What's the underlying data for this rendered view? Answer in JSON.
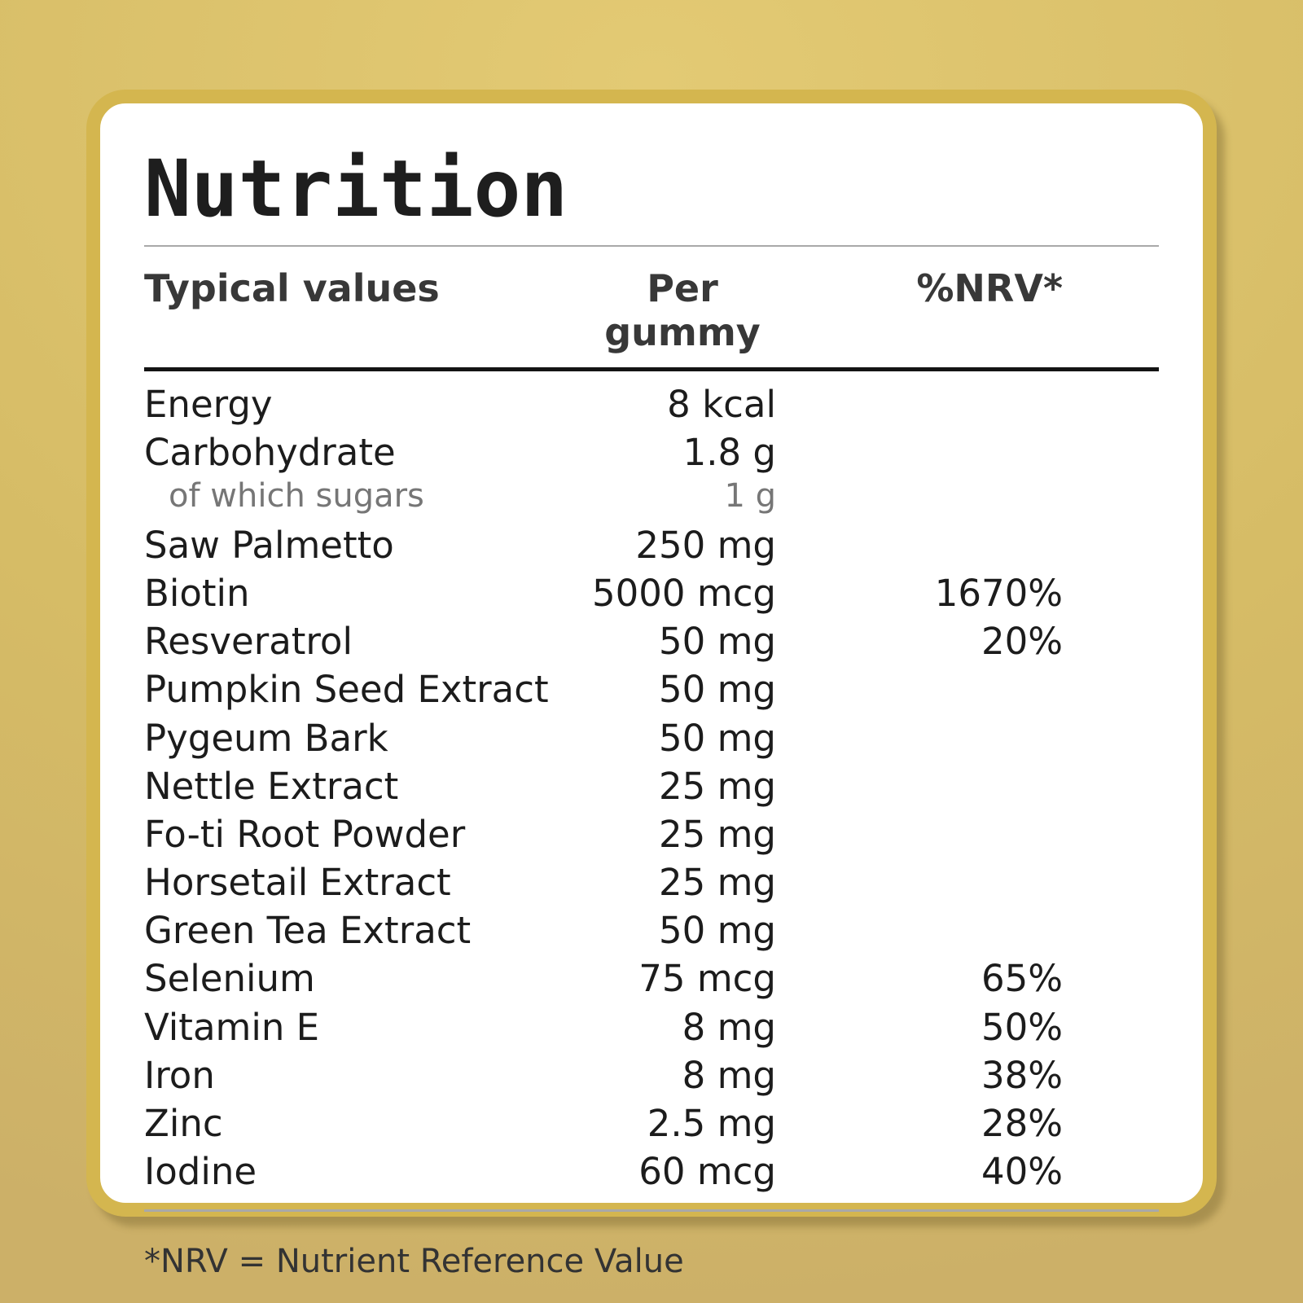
{
  "label": {
    "title": "Nutrition",
    "footnote": "*NRV = Nutrient Reference Value"
  },
  "colors": {
    "background_gold": "#d6bc66",
    "card_border_gold": "#d4b64f",
    "card_background": "#ffffff",
    "title_text": "#1e1e1e",
    "body_text": "#1c1c1c",
    "sub_row_text": "#767676",
    "header_rule": "#141414",
    "divider_gray": "#a9a9a9"
  },
  "table": {
    "headers": [
      "Typical values",
      "Per gummy",
      "%NRV*"
    ],
    "rows": [
      {
        "name": "Energy",
        "amount": "8 kcal",
        "nrv": "",
        "sub": false
      },
      {
        "name": "Carbohydrate",
        "amount": "1.8 g",
        "nrv": "",
        "sub": false
      },
      {
        "name": "of which sugars",
        "amount": "1 g",
        "nrv": "",
        "sub": true
      },
      {
        "name": "Saw Palmetto",
        "amount": "250 mg",
        "nrv": "",
        "sub": false
      },
      {
        "name": "Biotin",
        "amount": "5000 mcg",
        "nrv": "1670%",
        "sub": false
      },
      {
        "name": "Resveratrol",
        "amount": "50 mg",
        "nrv": "20%",
        "sub": false
      },
      {
        "name": "Pumpkin Seed Extract",
        "amount": "50 mg",
        "nrv": "",
        "sub": false
      },
      {
        "name": "Pygeum Bark",
        "amount": "50 mg",
        "nrv": "",
        "sub": false
      },
      {
        "name": "Nettle Extract",
        "amount": "25 mg",
        "nrv": "",
        "sub": false
      },
      {
        "name": "Fo-ti Root Powder",
        "amount": "25 mg",
        "nrv": "",
        "sub": false
      },
      {
        "name": "Horsetail Extract",
        "amount": "25 mg",
        "nrv": "",
        "sub": false
      },
      {
        "name": "Green Tea Extract",
        "amount": "50 mg",
        "nrv": "",
        "sub": false
      },
      {
        "name": "Selenium",
        "amount": "75 mcg",
        "nrv": "65%",
        "sub": false
      },
      {
        "name": "Vitamin E",
        "amount": "8 mg",
        "nrv": "50%",
        "sub": false
      },
      {
        "name": "Iron",
        "amount": "8 mg",
        "nrv": "38%",
        "sub": false
      },
      {
        "name": "Zinc",
        "amount": "2.5 mg",
        "nrv": "28%",
        "sub": false
      },
      {
        "name": "Iodine",
        "amount": "60 mcg",
        "nrv": "40%",
        "sub": false
      }
    ]
  }
}
